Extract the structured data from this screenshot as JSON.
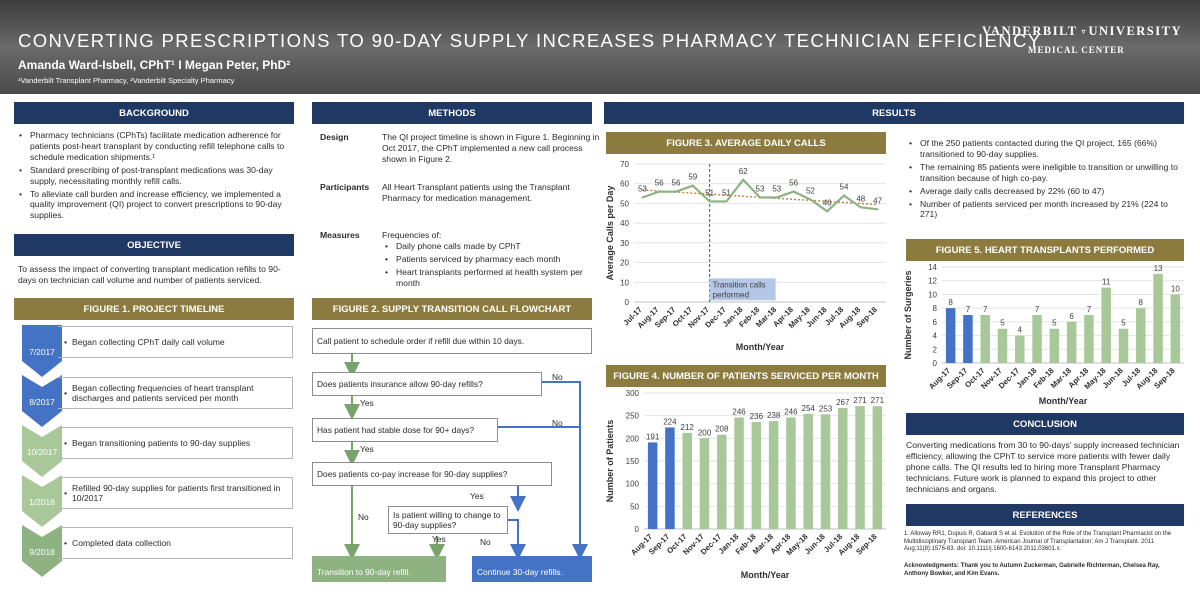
{
  "header": {
    "title": "CONVERTING PRESCRIPTIONS TO 90-DAY SUPPLY INCREASES PHARMACY TECHNICIAN EFFICIENCY",
    "authors": "Amanda Ward-Isbell, CPhT¹ I Megan Peter, PhD²",
    "affiliations": "¹Vanderbilt Transplant Pharmacy, ²Vanderbilt Specialty Pharmacy",
    "logo_line1a": "VANDERBILT",
    "logo_line1b": "UNIVERSITY",
    "logo_line2": "MEDICAL CENTER"
  },
  "background": {
    "heading": "BACKGROUND",
    "bullets": [
      "Pharmacy technicians (CPhTs) facilitate medication adherence for patients post-heart transplant by conducting refill telephone calls to schedule medication shipments.¹",
      "Standard prescribing of post-transplant medications was 30-day supply, necessitating monthly refill calls.",
      "To alleviate call burden and increase efficiency, we implemented a quality improvement (QI) project to convert prescriptions to 90-day supplies."
    ]
  },
  "objective": {
    "heading": "OBJECTIVE",
    "text": "To assess the impact of converting transplant medication refills to 90-days on technician call volume and number of patients serviced."
  },
  "timeline": {
    "heading": "FIGURE 1. PROJECT TIMELINE",
    "items": [
      {
        "date": "7/2017",
        "text": "Began collecting CPhT daily call volume"
      },
      {
        "date": "8/2017",
        "text": "Began collecting frequencies of heart transplant discharges and patients serviced per month"
      },
      {
        "date": "10/2017",
        "text": "Began transitioning patients to 90-day supplies"
      },
      {
        "date": "1/2018",
        "text": "Refilled 90-day supplies for patients first transitioned in 10/2017"
      },
      {
        "date": "9/2018",
        "text": "Completed data collection"
      }
    ]
  },
  "methods": {
    "heading": "METHODS",
    "design_label": "Design",
    "design_text": "The QI project timeline is shown in Figure 1. Beginning in Oct 2017, the CPhT implemented a new call process shown in Figure 2.",
    "participants_label": "Participants",
    "participants_text": "All Heart Transplant patients using the Transplant Pharmacy for medication management.",
    "measures_label": "Measures",
    "measures_intro": "Frequencies of:",
    "measures": [
      "Daily phone calls made by CPhT",
      "Patients serviced by pharmacy each month",
      "Heart transplants performed at health system per month"
    ]
  },
  "flowchart": {
    "heading": "FIGURE 2. SUPPLY TRANSITION CALL FLOWCHART",
    "step1": "Call patient to schedule order if refill due within 10 days.",
    "q1": "Does patients insurance allow 90-day refills?",
    "q2": "Has patient had stable dose for 90+ days?",
    "q3": "Does patients co-pay increase for 90-day supplies?",
    "q4": "Is patient willing to change to 90-day supplies?",
    "yes": "Yes",
    "no": "No",
    "end_green": "Transition to 90-day refill.",
    "end_blue": "Continue 30-day refills."
  },
  "results": {
    "heading": "RESULTS",
    "bullets": [
      "Of the 250 patients contacted during the QI project, 165 (66%) transitioned to 90-day supplies.",
      "The remaining 85 patients were ineligible to transition or unwilling to transition because of high co-pay.",
      "Average daily calls decreased by 22% (60 to 47)",
      "Number of patients serviced per month increased by 21% (224 to 271)"
    ]
  },
  "conclusion": {
    "heading": "CONCLUSION",
    "text": "Converting medications from 30 to 90-days' supply increased technician efficiency, allowing the CPhT to service more patients with fewer daily phone calls. The QI results led to hiring more Transplant Pharmacy technicians. Future work is planned to expand this project to other technicians and organs."
  },
  "references": {
    "heading": "REFERENCES",
    "ref1": "1. Alloway RR1, Dupuis R, Gabardi S et al. Evolution of the Role of the Transplant Pharmacist on the Multidisciplinary Transplant Team. American Journal of Transplantation: Am J Transplant. 2011 Aug;11(8):1576-83. doi: 10.1111/j.1600-6143.2011.03601.x.",
    "ack": "Acknowledgments: Thank you to Autumn Zuckerman, Gabrielle Richterman, Chelsea Ray, Anthony Bowker, and Kim Evans."
  },
  "chart_data": [
    {
      "id": "fig3",
      "type": "line",
      "title": "FIGURE 3. AVERAGE DAILY CALLS",
      "xlabel": "Month/Year",
      "ylabel": "Average Calls per Day",
      "categories": [
        "Jul-17",
        "Aug-17",
        "Sep-17",
        "Oct-17",
        "Nov-17",
        "Dec-17",
        "Jan-18",
        "Feb-18",
        "Mar-18",
        "Apr-18",
        "May-18",
        "Jun-18",
        "Jul-18",
        "Aug-18",
        "Sep-18"
      ],
      "values": [
        53,
        56,
        56,
        59,
        51,
        51,
        62,
        53,
        53,
        56,
        52,
        46,
        54,
        48,
        47
      ],
      "ylim": [
        0,
        70
      ],
      "yticks": [
        0,
        10,
        20,
        30,
        40,
        50,
        60,
        70
      ],
      "trendline": true,
      "annotation": "Transition calls performed",
      "annotation_at": "Nov-17",
      "color": "#8fb282"
    },
    {
      "id": "fig4",
      "type": "bar",
      "title": "FIGURE 4. NUMBER OF PATIENTS SERVICED PER MONTH",
      "xlabel": "Month/Year",
      "ylabel": "Number of Patients",
      "categories": [
        "Aug-17",
        "Sep-17",
        "Oct-17",
        "Nov-17",
        "Dec-17",
        "Jan-18",
        "Feb-18",
        "Mar-18",
        "Apr-18",
        "May-18",
        "Jun-18",
        "Jul-18",
        "Aug-18",
        "Sep-18"
      ],
      "values": [
        191,
        224,
        212,
        200,
        208,
        246,
        236,
        238,
        246,
        254,
        253,
        267,
        271,
        271
      ],
      "ylim": [
        0,
        300
      ],
      "yticks": [
        0,
        50,
        100,
        150,
        200,
        250,
        300
      ],
      "colors": [
        "#4472c4",
        "#4472c4",
        "#a9c89a"
      ]
    },
    {
      "id": "fig5",
      "type": "bar",
      "title": "FIGURE 5. HEART TRANSPLANTS PERFORMED",
      "xlabel": "Month/Year",
      "ylabel": "Number of Surgeries",
      "categories": [
        "Aug-17",
        "Sep-17",
        "Oct-17",
        "Nov-17",
        "Dec-17",
        "Jan-18",
        "Feb-18",
        "Mar-18",
        "Apr-18",
        "May-18",
        "Jun-18",
        "Jul-18",
        "Aug-18",
        "Sep-18"
      ],
      "values": [
        8,
        7,
        7,
        5,
        4,
        7,
        5,
        6,
        7,
        11,
        5,
        8,
        13,
        10
      ],
      "ylim": [
        0,
        14
      ],
      "yticks": [
        0,
        2,
        4,
        6,
        8,
        10,
        12,
        14
      ],
      "colors": [
        "#4472c4",
        "#4472c4",
        "#a9c89a"
      ]
    }
  ]
}
